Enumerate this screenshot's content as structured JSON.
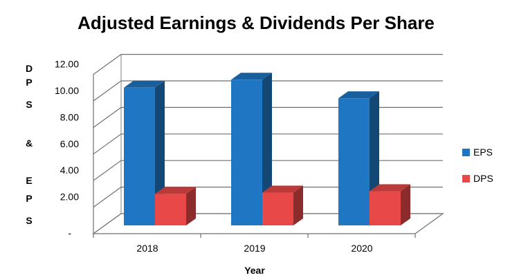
{
  "chart_data": {
    "type": "bar",
    "title": "Adjusted Earnings & Dividends Per Share",
    "xlabel": "Year",
    "ylabel_chars": [
      "D",
      "P",
      "S",
      "&",
      "E",
      "P",
      "S"
    ],
    "categories": [
      "2018",
      "2019",
      "2020"
    ],
    "series": [
      {
        "name": "EPS",
        "values": [
          11.0,
          11.6,
          10.2
        ],
        "color": "#1f77c4"
      },
      {
        "name": "DPS",
        "values": [
          3.0,
          3.1,
          3.2
        ],
        "color": "#e84848"
      }
    ],
    "y_ticks": [
      "2.00",
      "4.00",
      "6.00",
      "8.00",
      "10.00",
      "12.00"
    ],
    "ylim": [
      0,
      12
    ],
    "grid": true,
    "legend_position": "right",
    "three_d": true
  }
}
